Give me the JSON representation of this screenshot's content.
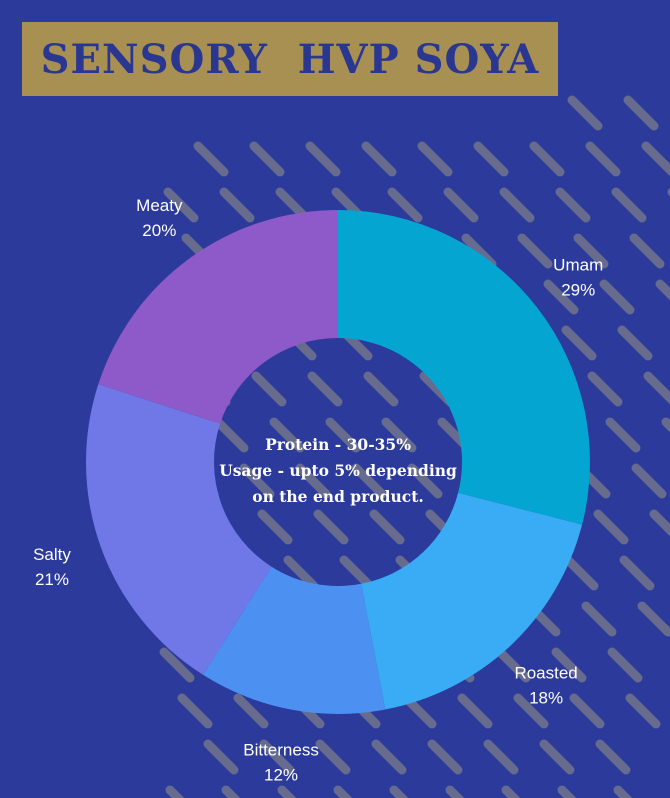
{
  "header": {
    "title": "SENSORY  HVP SOYA"
  },
  "chart_data": {
    "type": "pie",
    "donut": true,
    "categories": [
      "Umam",
      "Roasted",
      "Bitterness",
      "Salty",
      "Meaty"
    ],
    "values": [
      29,
      18,
      12,
      21,
      20
    ],
    "value_labels": [
      "29%",
      "18%",
      "12%",
      "21%",
      "20%"
    ],
    "colors": [
      "#05a5d2",
      "#3aabf5",
      "#4c91f2",
      "#6f78e6",
      "#8e59c8"
    ],
    "legend": "none",
    "center_text": [
      "Protein - 30-35%",
      "Usage - upto 5% depending",
      "on the end product."
    ]
  },
  "background": {
    "color": "#2b3a9b",
    "stripe_color": "#7b7d8a",
    "title_bar_color": "#a88f52"
  }
}
